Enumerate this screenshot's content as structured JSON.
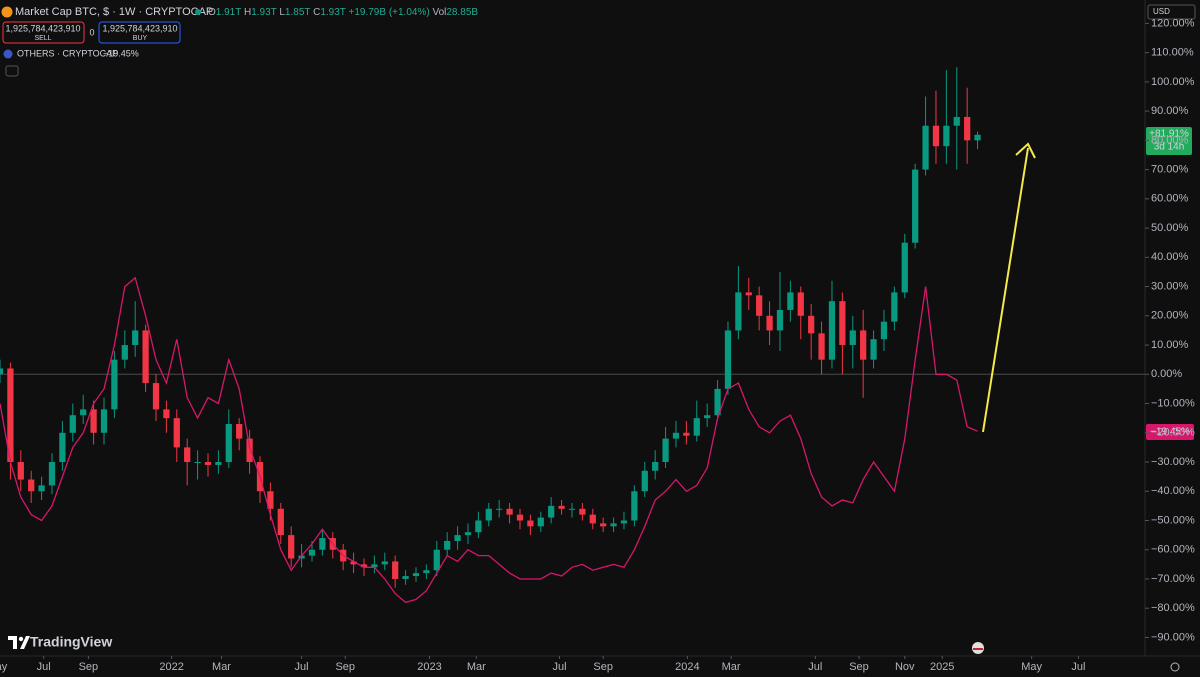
{
  "header": {
    "symbol": "Market Cap BTC, $ · 1W · CRYPTOCAP",
    "ohlc": [
      "O",
      "1.91T",
      "H",
      "1.93T",
      "L",
      "1.85T",
      "C",
      "1.93T",
      "+19.79B (+1.04%)"
    ],
    "volume": [
      "Vol",
      "28.85B"
    ],
    "sell_price": "1,925,784,423,910",
    "sell": "SELL",
    "spread": "0",
    "buy_price": "1,925,784,423,910",
    "buy": "BUY",
    "compare_symbol": "OTHERS · CRYPTOCAP",
    "compare_change": "−19.45%",
    "currency": "USD",
    "brand": "TradingView"
  },
  "price_tags": {
    "main": "+81.91%",
    "countdown": "3d 14h",
    "compare": "−19.45%"
  },
  "chart_data": {
    "type": "candlestick",
    "xlim": [
      0,
      110.1
    ],
    "ylim": [
      -96,
      128
    ],
    "grid": false,
    "baseline": 0,
    "xticks": [
      {
        "value": -0.3,
        "label": "May"
      },
      {
        "value": 4.2,
        "label": "Jul"
      },
      {
        "value": 8.5,
        "label": "Sep"
      },
      {
        "value": 16.5,
        "label": "2022"
      },
      {
        "value": 21.3,
        "label": "Mar"
      },
      {
        "value": 29,
        "label": "Jul"
      },
      {
        "value": 33.2,
        "label": "Sep"
      },
      {
        "value": 41.3,
        "label": "2023"
      },
      {
        "value": 45.8,
        "label": "Mar"
      },
      {
        "value": 53.8,
        "label": "Jul"
      },
      {
        "value": 58,
        "label": "Sep"
      },
      {
        "value": 66.1,
        "label": "2024"
      },
      {
        "value": 70.3,
        "label": "Mar"
      },
      {
        "value": 78.4,
        "label": "Jul"
      },
      {
        "value": 82.6,
        "label": "Sep"
      },
      {
        "value": 87,
        "label": "Nov"
      },
      {
        "value": 90.6,
        "label": "2025"
      },
      {
        "value": 99.2,
        "label": "May"
      },
      {
        "value": 103.7,
        "label": "Jul"
      }
    ],
    "yticks": [
      {
        "value": 120,
        "label": "120.00%"
      },
      {
        "value": 110,
        "label": "110.00%"
      },
      {
        "value": 100,
        "label": "100.00%"
      },
      {
        "value": 90,
        "label": "90.00%"
      },
      {
        "value": 80,
        "label": "80.00%"
      },
      {
        "value": 70,
        "label": "70.00%"
      },
      {
        "value": 60,
        "label": "60.00%"
      },
      {
        "value": 50,
        "label": "50.00%"
      },
      {
        "value": 40,
        "label": "40.00%"
      },
      {
        "value": 30,
        "label": "30.00%"
      },
      {
        "value": 20,
        "label": "20.00%"
      },
      {
        "value": 10,
        "label": "10.00%"
      },
      {
        "value": 0,
        "label": "0.00%"
      },
      {
        "value": -10,
        "label": "−10.00%"
      },
      {
        "value": -20,
        "label": "−20.00%"
      },
      {
        "value": -30,
        "label": "−30.00%"
      },
      {
        "value": -40,
        "label": "−40.00%"
      },
      {
        "value": -50,
        "label": "−50.00%"
      },
      {
        "value": -60,
        "label": "−60.00%"
      },
      {
        "value": -70,
        "label": "−70.00%"
      },
      {
        "value": -80,
        "label": "−80.00%"
      },
      {
        "value": -90,
        "label": "−90.00%"
      }
    ],
    "up_color": "#089981",
    "down_color": "#f23645",
    "open": [
      0,
      2,
      -30,
      -36,
      -40,
      -38,
      -30,
      -20,
      -14,
      -12,
      -20,
      -12,
      5,
      10,
      15,
      -3,
      -12,
      -15,
      -25,
      -30,
      -30,
      -31,
      -30,
      -17,
      -22,
      -30,
      -40,
      -46,
      -55,
      -63,
      -62,
      -60,
      -56,
      -60,
      -64,
      -65,
      -66,
      -65,
      -64,
      -70,
      -69,
      -68,
      -67,
      -60,
      -57,
      -55,
      -54,
      -50,
      -46,
      -46,
      -48,
      -50,
      -52,
      -49,
      -45,
      -46,
      -46,
      -48,
      -51,
      -52,
      -51,
      -50,
      -40,
      -33,
      -30,
      -22,
      -20,
      -21,
      -15,
      -14,
      -5,
      15,
      28,
      27,
      20,
      15,
      22,
      28,
      20,
      14,
      5,
      25,
      10,
      15,
      5,
      12,
      18,
      28,
      45,
      70,
      85,
      78,
      85,
      88,
      80
    ],
    "high": [
      5,
      4,
      -26,
      -33,
      -35,
      -27,
      -16,
      -10,
      -7,
      -9,
      -8,
      8,
      15,
      25,
      17,
      0,
      -9,
      -12,
      -22,
      -26,
      -27,
      -26,
      -12,
      -15,
      -19,
      -28,
      -37,
      -44,
      -52,
      -58,
      -57,
      -53,
      -54,
      -58,
      -61,
      -63,
      -62,
      -61,
      -62,
      -67,
      -66,
      -65,
      -57,
      -54,
      -52,
      -51,
      -47,
      -44,
      -43,
      -44,
      -46,
      -48,
      -47,
      -42,
      -43,
      -44,
      -44,
      -46,
      -49,
      -49,
      -47,
      -38,
      -30,
      -26,
      -18,
      -16,
      -16,
      -9,
      -10,
      -2,
      18,
      37,
      33,
      30,
      25,
      35,
      32,
      30,
      24,
      18,
      32,
      28,
      20,
      22,
      15,
      22,
      30,
      48,
      72,
      95,
      97,
      104,
      105,
      98,
      83
    ],
    "low": [
      -3,
      -36,
      -40,
      -44,
      -43,
      -41,
      -33,
      -23,
      -17,
      -24,
      -24,
      -15,
      2,
      6,
      -6,
      -16,
      -20,
      -30,
      -38,
      -36,
      -35,
      -34,
      -32,
      -26,
      -34,
      -44,
      -50,
      -58,
      -66,
      -66,
      -64,
      -62,
      -63,
      -67,
      -68,
      -69,
      -68,
      -67,
      -73,
      -72,
      -71,
      -70,
      -69,
      -62,
      -60,
      -58,
      -56,
      -52,
      -49,
      -51,
      -53,
      -55,
      -54,
      -51,
      -48,
      -49,
      -50,
      -53,
      -54,
      -54,
      -53,
      -52,
      -42,
      -36,
      -32,
      -25,
      -24,
      -23,
      -18,
      -16,
      -7,
      12,
      22,
      15,
      10,
      8,
      18,
      12,
      5,
      0,
      2,
      0,
      2,
      -8,
      2,
      8,
      15,
      26,
      43,
      68,
      72,
      72,
      70,
      72,
      77
    ],
    "close": [
      2,
      -30,
      -36,
      -40,
      -38,
      -30,
      -20,
      -14,
      -12,
      -20,
      -12,
      5,
      10,
      15,
      -3,
      -12,
      -15,
      -25,
      -30,
      -30,
      -31,
      -30,
      -17,
      -22,
      -30,
      -40,
      -46,
      -55,
      -63,
      -62,
      -60,
      -56,
      -60,
      -64,
      -65,
      -66,
      -65,
      -64,
      -70,
      -69,
      -68,
      -67,
      -60,
      -57,
      -55,
      -54,
      -50,
      -46,
      -46,
      -48,
      -50,
      -52,
      -49,
      -45,
      -46,
      -46,
      -48,
      -51,
      -52,
      -51,
      -50,
      -40,
      -33,
      -30,
      -22,
      -20,
      -21,
      -15,
      -14,
      -5,
      15,
      28,
      27,
      20,
      15,
      22,
      28,
      20,
      14,
      5,
      25,
      10,
      15,
      5,
      12,
      18,
      28,
      45,
      70,
      85,
      78,
      85,
      88,
      80,
      81.91
    ],
    "compare": {
      "color": "#d6176b",
      "values": [
        -10,
        -30,
        -42,
        -48,
        -50,
        -45,
        -35,
        -25,
        -20,
        -10,
        -5,
        10,
        30,
        33,
        20,
        5,
        -3,
        12,
        -8,
        -15,
        -8,
        -10,
        5,
        -5,
        -25,
        -35,
        -48,
        -60,
        -67,
        -62,
        -58,
        -53,
        -58,
        -62,
        -64,
        -66,
        -66,
        -70,
        -75,
        -78,
        -77,
        -74,
        -68,
        -62,
        -64,
        -60,
        -62,
        -62,
        -65,
        -68,
        -70,
        -70,
        -70,
        -68,
        -69,
        -66,
        -65,
        -67,
        -66,
        -65,
        -66,
        -60,
        -52,
        -43,
        -40,
        -36,
        -40,
        -38,
        -32,
        -15,
        -5,
        -3,
        -12,
        -18,
        -20,
        -16,
        -14,
        -22,
        -34,
        -42,
        -45,
        -43,
        -44,
        -36,
        -30,
        -35,
        -40,
        -22,
        5,
        30,
        0,
        0,
        -2,
        -18,
        -19.45
      ]
    }
  }
}
